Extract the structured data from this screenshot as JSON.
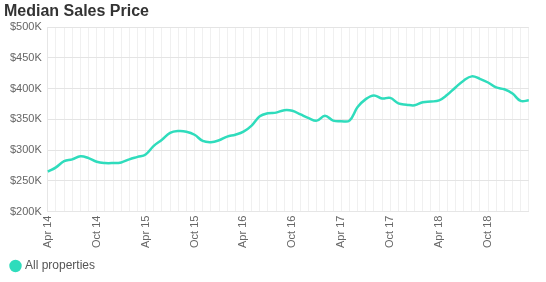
{
  "chart_data": {
    "type": "line",
    "title": "Median Sales Price",
    "categories": [
      "Apr 14",
      null,
      null,
      null,
      null,
      null,
      "Oct 14",
      null,
      null,
      null,
      null,
      null,
      "Apr 15",
      null,
      null,
      null,
      null,
      null,
      "Oct 15",
      null,
      null,
      null,
      null,
      null,
      "Apr 16",
      null,
      null,
      null,
      null,
      null,
      "Oct 16",
      null,
      null,
      null,
      null,
      null,
      "Apr 17",
      null,
      null,
      null,
      null,
      null,
      "Oct 17",
      null,
      null,
      null,
      null,
      null,
      "Apr 18",
      null,
      null,
      null,
      null,
      null,
      "Oct 18",
      null,
      null,
      null,
      null,
      null
    ],
    "series": [
      {
        "name": "All properties",
        "color": "#2fdcbc",
        "values": [
          265000,
          272000,
          282000,
          285000,
          290000,
          287000,
          281000,
          279000,
          279000,
          280000,
          285000,
          289000,
          293000,
          307000,
          317000,
          328000,
          331000,
          330000,
          325000,
          315000,
          313000,
          316000,
          322000,
          325000,
          330000,
          340000,
          355000,
          360000,
          361000,
          365000,
          364000,
          358000,
          352000,
          348000,
          356000,
          348000,
          347000,
          348000,
          370000,
          383000,
          389000,
          384000,
          385000,
          376000,
          374000,
          373000,
          378000,
          379000,
          381000,
          390000,
          402000,
          413000,
          420000,
          416000,
          410000,
          402000,
          399000,
          392000,
          380000,
          381000
        ]
      }
    ],
    "ylim": [
      200000,
      500000
    ],
    "yticks": [
      {
        "value": 200000,
        "label": "$200K"
      },
      {
        "value": 250000,
        "label": "$250K"
      },
      {
        "value": 300000,
        "label": "$300K"
      },
      {
        "value": 350000,
        "label": "$350K"
      },
      {
        "value": 400000,
        "label": "$400K"
      },
      {
        "value": 450000,
        "label": "$450K"
      },
      {
        "value": 500000,
        "label": "$500K"
      }
    ],
    "grid": true,
    "legend": "bottom"
  }
}
